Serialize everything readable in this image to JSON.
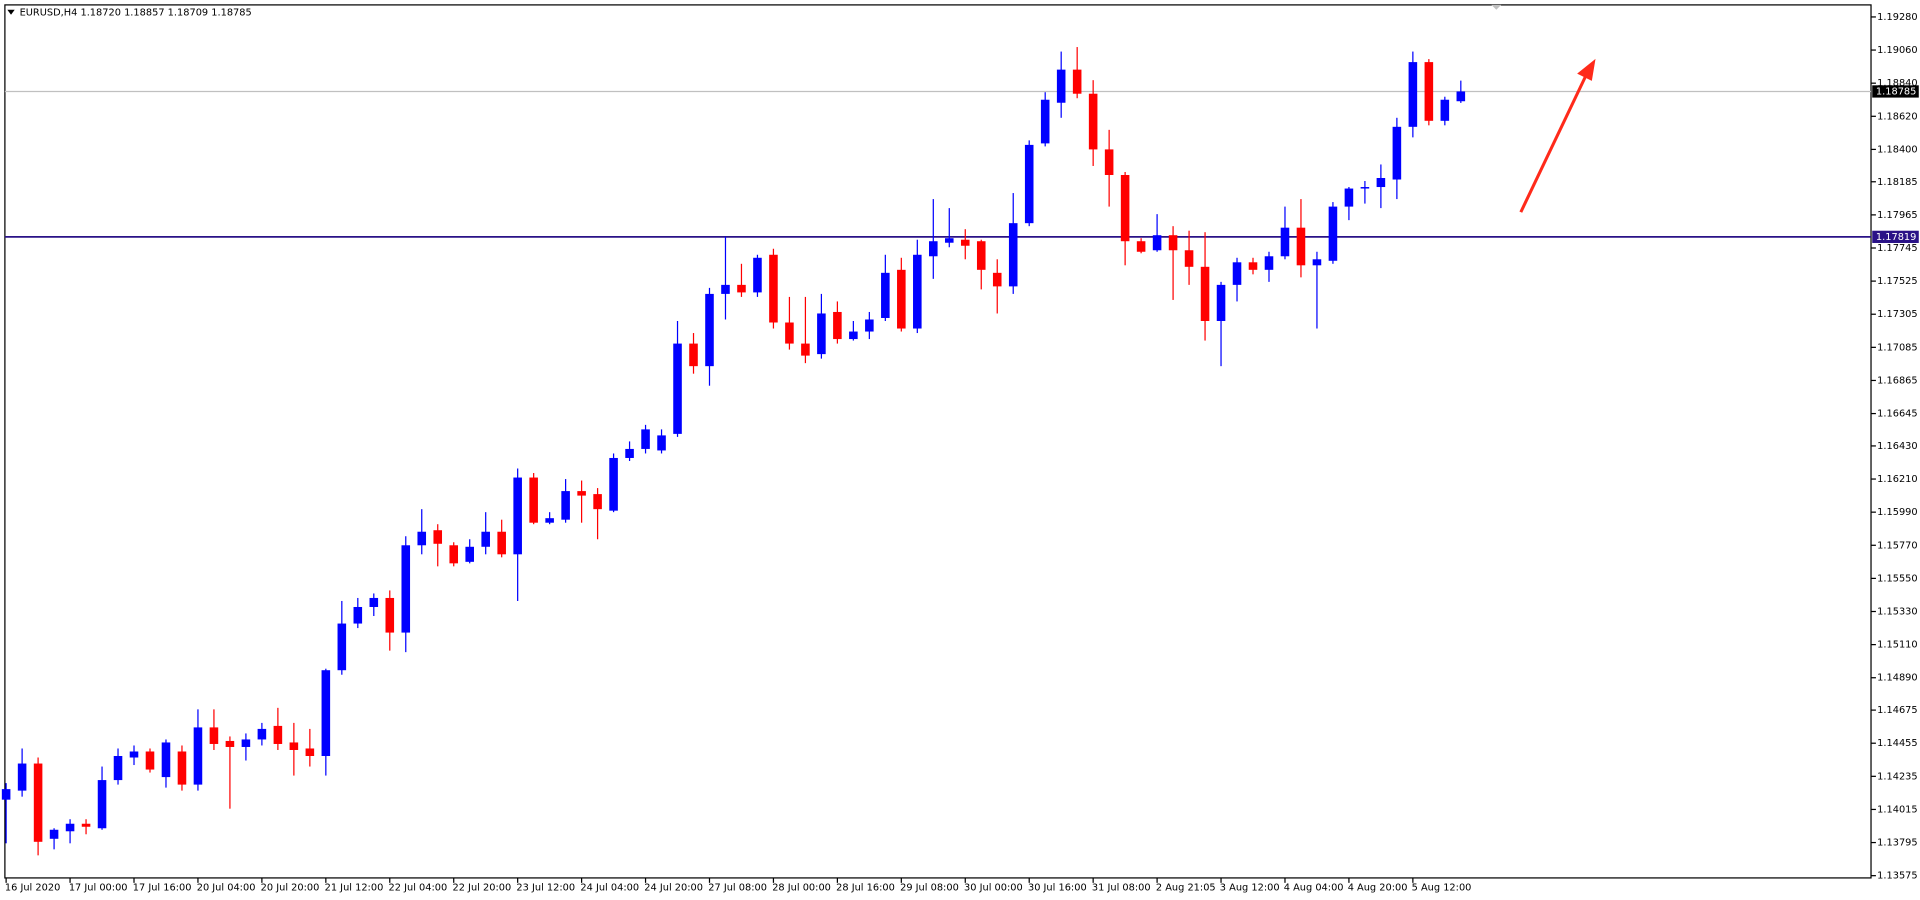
{
  "chart_data": {
    "type": "candlestick",
    "title": "EURUSD,H4  1.18720 1.18857 1.18709 1.18785",
    "categories": [
      "16 Jul 2020",
      null,
      null,
      null,
      "17 Jul 00:00",
      null,
      null,
      null,
      "17 Jul 16:00",
      null,
      null,
      null,
      "20 Jul 04:00",
      null,
      null,
      null,
      "20 Jul 20:00",
      null,
      null,
      null,
      "21 Jul 12:00",
      null,
      null,
      null,
      "22 Jul 04:00",
      null,
      null,
      null,
      "22 Jul 20:00",
      null,
      null,
      null,
      "23 Jul 12:00",
      null,
      null,
      null,
      "24 Jul 04:00",
      null,
      null,
      null,
      "24 Jul 20:00",
      null,
      null,
      null,
      "27 Jul 08:00",
      null,
      null,
      null,
      "28 Jul 00:00",
      null,
      null,
      null,
      "28 Jul 16:00",
      null,
      null,
      null,
      "29 Jul 08:00",
      null,
      null,
      null,
      "30 Jul 00:00",
      null,
      null,
      null,
      "30 Jul 16:00",
      null,
      null,
      null,
      "31 Jul 08:00",
      null,
      null,
      null,
      "2 Aug 21:05",
      null,
      null,
      null,
      "3 Aug 12:00",
      null,
      null,
      null,
      "4 Aug 04:00",
      null,
      null,
      null,
      "4 Aug 20:00",
      null,
      null,
      null,
      "5 Aug 12:00",
      null,
      null,
      null
    ],
    "open": [
      1.1408,
      1.1414,
      1.1432,
      1.1382,
      1.1387,
      1.1392,
      1.1389,
      1.1421,
      1.1436,
      1.144,
      1.1423,
      1.144,
      1.1418,
      1.1456,
      1.1447,
      1.1443,
      1.1448,
      1.1457,
      1.1446,
      1.1442,
      1.1437,
      1.1494,
      1.1525,
      1.1536,
      1.1542,
      1.1519,
      1.1577,
      1.1587,
      1.1577,
      1.1566,
      1.1576,
      1.1586,
      1.1571,
      1.1622,
      1.1592,
      1.1594,
      1.1613,
      1.1611,
      1.16,
      1.1635,
      1.1641,
      1.164,
      1.1651,
      1.1711,
      1.1696,
      1.1744,
      1.175,
      1.1745,
      1.177,
      1.1725,
      1.1711,
      1.1704,
      1.1732,
      1.1714,
      1.1719,
      1.1728,
      1.176,
      1.1721,
      1.1769,
      1.1778,
      1.178,
      1.1779,
      1.1758,
      1.1749,
      1.1791,
      1.1844,
      1.1871,
      1.1893,
      1.1877,
      1.184,
      1.1823,
      1.1779,
      1.1773,
      1.1783,
      1.1773,
      1.1762,
      1.1726,
      1.175,
      1.1765,
      1.176,
      1.1769,
      1.1788,
      1.1763,
      1.1766,
      1.1802,
      1.1814,
      1.1815,
      1.182,
      1.1855,
      1.1898,
      1.1859,
      1.1872
    ],
    "high": [
      1.1419,
      1.1442,
      1.1436,
      1.1389,
      1.1395,
      1.1395,
      1.143,
      1.1442,
      1.1444,
      1.1442,
      1.1448,
      1.1444,
      1.1468,
      1.1468,
      1.145,
      1.1452,
      1.1459,
      1.1469,
      1.1459,
      1.1455,
      1.1495,
      1.154,
      1.1542,
      1.1545,
      1.1547,
      1.1583,
      1.1601,
      1.1591,
      1.1579,
      1.1581,
      1.1599,
      1.1594,
      1.1628,
      1.1625,
      1.1599,
      1.1621,
      1.162,
      1.1615,
      1.1638,
      1.1646,
      1.1657,
      1.1654,
      1.1726,
      1.1718,
      1.1748,
      1.1782,
      1.1764,
      1.177,
      1.1774,
      1.1742,
      1.1742,
      1.1744,
      1.1739,
      1.1726,
      1.1732,
      1.177,
      1.1768,
      1.178,
      1.1807,
      1.1801,
      1.1787,
      1.178,
      1.1767,
      1.1811,
      1.1846,
      1.1878,
      1.1905,
      1.1908,
      1.1886,
      1.1853,
      1.1825,
      1.1781,
      1.1797,
      1.1789,
      1.1786,
      1.1785,
      1.1752,
      1.1768,
      1.1768,
      1.1772,
      1.1802,
      1.1807,
      1.1772,
      1.1805,
      1.1815,
      1.1819,
      1.183,
      1.1861,
      1.1905,
      1.19,
      1.1875,
      1.18857
    ],
    "low": [
      1.1379,
      1.141,
      1.1371,
      1.1375,
      1.1379,
      1.1385,
      1.1388,
      1.1418,
      1.1431,
      1.1426,
      1.1416,
      1.1414,
      1.1414,
      1.1441,
      1.1402,
      1.1434,
      1.1444,
      1.1441,
      1.1424,
      1.143,
      1.1424,
      1.1491,
      1.1522,
      1.153,
      1.1507,
      1.1506,
      1.1571,
      1.1563,
      1.1563,
      1.1565,
      1.1571,
      1.1569,
      1.154,
      1.1591,
      1.1591,
      1.1592,
      1.1592,
      1.1581,
      1.1599,
      1.1633,
      1.1638,
      1.1638,
      1.1649,
      1.1691,
      1.1683,
      1.1727,
      1.1742,
      1.1742,
      1.1721,
      1.1707,
      1.1698,
      1.1701,
      1.1711,
      1.1713,
      1.1714,
      1.1726,
      1.1719,
      1.1718,
      1.1754,
      1.1775,
      1.1767,
      1.1747,
      1.1731,
      1.1744,
      1.1789,
      1.1842,
      1.1861,
      1.1874,
      1.1829,
      1.1802,
      1.1763,
      1.1771,
      1.1772,
      1.174,
      1.175,
      1.1713,
      1.1696,
      1.1739,
      1.1757,
      1.1752,
      1.1767,
      1.1755,
      1.1721,
      1.1764,
      1.1793,
      1.1804,
      1.1801,
      1.1807,
      1.1848,
      1.1856,
      1.1856,
      1.18709
    ],
    "close": [
      1.1415,
      1.1432,
      1.138,
      1.1388,
      1.1392,
      1.139,
      1.1421,
      1.1437,
      1.144,
      1.1428,
      1.1446,
      1.1418,
      1.1456,
      1.1445,
      1.1443,
      1.1448,
      1.1455,
      1.1445,
      1.1441,
      1.1437,
      1.1494,
      1.1525,
      1.1536,
      1.1542,
      1.1519,
      1.1577,
      1.1586,
      1.1578,
      1.1565,
      1.1576,
      1.1586,
      1.1571,
      1.1622,
      1.1592,
      1.1595,
      1.1613,
      1.161,
      1.1601,
      1.1635,
      1.1641,
      1.1654,
      1.165,
      1.1711,
      1.1696,
      1.1744,
      1.175,
      1.1745,
      1.1768,
      1.1725,
      1.1711,
      1.1703,
      1.1731,
      1.1714,
      1.1719,
      1.1727,
      1.1758,
      1.1721,
      1.177,
      1.1779,
      1.1781,
      1.1776,
      1.176,
      1.1749,
      1.1791,
      1.1843,
      1.1873,
      1.1893,
      1.1877,
      1.184,
      1.1823,
      1.1779,
      1.1772,
      1.1783,
      1.1773,
      1.1762,
      1.1726,
      1.175,
      1.1765,
      1.176,
      1.1769,
      1.1788,
      1.1763,
      1.1767,
      1.1802,
      1.1814,
      1.1815,
      1.1821,
      1.1855,
      1.1898,
      1.1859,
      1.1873,
      1.18785
    ],
    "up_color": "#0000ff",
    "down_color": "#ff0000",
    "ylim": [
      1.1356,
      1.1936
    ],
    "yticks": [
      {
        "value": 1.1928,
        "label": "1.19280"
      },
      {
        "value": 1.1906,
        "label": "1.19060"
      },
      {
        "value": 1.1884,
        "label": "1.18840"
      },
      {
        "value": 1.1862,
        "label": "1.18620"
      },
      {
        "value": 1.184,
        "label": "1.18400"
      },
      {
        "value": 1.18185,
        "label": "1.18185"
      },
      {
        "value": 1.17965,
        "label": "1.17965"
      },
      {
        "value": 1.17745,
        "label": "1.17745"
      },
      {
        "value": 1.17525,
        "label": "1.17525"
      },
      {
        "value": 1.17305,
        "label": "1.17305"
      },
      {
        "value": 1.17085,
        "label": "1.17085"
      },
      {
        "value": 1.16865,
        "label": "1.16865"
      },
      {
        "value": 1.16645,
        "label": "1.16645"
      },
      {
        "value": 1.1643,
        "label": "1.16430"
      },
      {
        "value": 1.1621,
        "label": "1.16210"
      },
      {
        "value": 1.1599,
        "label": "1.15990"
      },
      {
        "value": 1.1577,
        "label": "1.15770"
      },
      {
        "value": 1.1555,
        "label": "1.15550"
      },
      {
        "value": 1.1533,
        "label": "1.15330"
      },
      {
        "value": 1.1511,
        "label": "1.15110"
      },
      {
        "value": 1.1489,
        "label": "1.14890"
      },
      {
        "value": 1.14675,
        "label": "1.14675"
      },
      {
        "value": 1.14455,
        "label": "1.14455"
      },
      {
        "value": 1.14235,
        "label": "1.14235"
      },
      {
        "value": 1.14015,
        "label": "1.14015"
      },
      {
        "value": 1.13795,
        "label": "1.13795"
      },
      {
        "value": 1.13575,
        "label": "1.13575"
      }
    ],
    "grid": false,
    "hlines": [
      {
        "value": 1.17819,
        "label": "1.17819",
        "color": "#2a1287"
      }
    ],
    "last_price": {
      "value": 1.18785,
      "label": "1.18785",
      "color": "#000000",
      "line_color": "#c0c0c0"
    }
  }
}
